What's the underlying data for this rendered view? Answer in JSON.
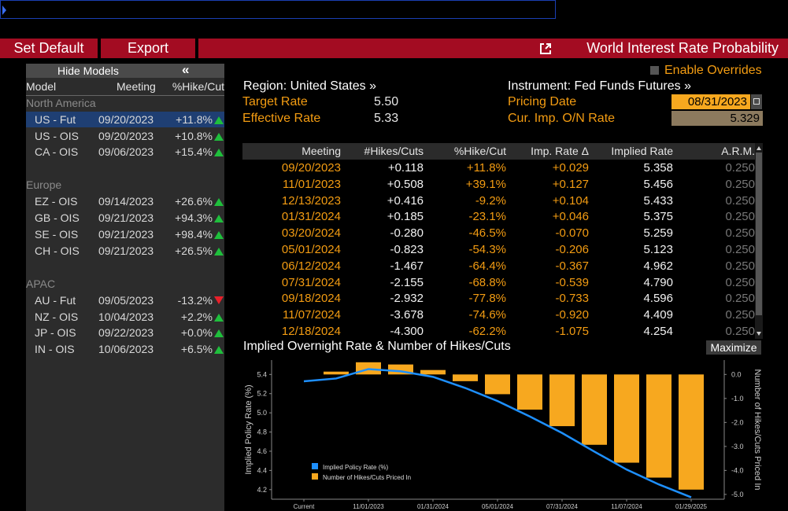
{
  "toolbar": {
    "buttons": [
      "Set Default",
      "Export"
    ],
    "title": "World Interest Rate Probability"
  },
  "left_panel": {
    "hide_label": "Hide Models",
    "collapse_icon": "«",
    "headers": [
      "Model",
      "Meeting",
      "%Hike/Cut"
    ],
    "groups": [
      {
        "name": "North America",
        "rows": [
          {
            "model": "US - Fut",
            "meeting": "09/20/2023",
            "pct": "+11.8%",
            "dir": "up",
            "selected": true
          },
          {
            "model": "US - OIS",
            "meeting": "09/20/2023",
            "pct": "+10.8%",
            "dir": "up"
          },
          {
            "model": "CA - OIS",
            "meeting": "09/06/2023",
            "pct": "+15.4%",
            "dir": "up"
          }
        ]
      },
      {
        "name": "Europe",
        "rows": [
          {
            "model": "EZ - OIS",
            "meeting": "09/14/2023",
            "pct": "+26.6%",
            "dir": "up"
          },
          {
            "model": "GB - OIS",
            "meeting": "09/21/2023",
            "pct": "+94.3%",
            "dir": "up"
          },
          {
            "model": "SE - OIS",
            "meeting": "09/21/2023",
            "pct": "+98.4%",
            "dir": "up"
          },
          {
            "model": "CH - OIS",
            "meeting": "09/21/2023",
            "pct": "+26.5%",
            "dir": "up"
          }
        ]
      },
      {
        "name": "APAC",
        "rows": [
          {
            "model": "AU - Fut",
            "meeting": "09/05/2023",
            "pct": "-13.2%",
            "dir": "down"
          },
          {
            "model": "NZ - OIS",
            "meeting": "10/04/2023",
            "pct": "+2.2%",
            "dir": "up"
          },
          {
            "model": "JP - OIS",
            "meeting": "09/22/2023",
            "pct": "+0.0%",
            "dir": "up"
          },
          {
            "model": "IN - OIS",
            "meeting": "10/06/2023",
            "pct": "+6.5%",
            "dir": "up"
          }
        ]
      }
    ]
  },
  "info": {
    "enable_overrides": "Enable Overrides",
    "region": "Region: United States »",
    "instrument": "Instrument: Fed Funds Futures »",
    "target_rate_label": "Target Rate",
    "target_rate_value": "5.50",
    "effective_rate_label": "Effective Rate",
    "effective_rate_value": "5.33",
    "pricing_date_label": "Pricing Date",
    "pricing_date_value": "08/31/2023",
    "cur_imp_label": "Cur. Imp. O/N Rate",
    "cur_imp_value": "5.329"
  },
  "table": {
    "headers": [
      "Meeting",
      "#Hikes/Cuts",
      "%Hike/Cut",
      "Imp. Rate Δ",
      "Implied Rate",
      "A.R.M."
    ],
    "rows": [
      [
        "09/20/2023",
        "+0.118",
        "+11.8%",
        "+0.029",
        "5.358",
        "0.250"
      ],
      [
        "11/01/2023",
        "+0.508",
        "+39.1%",
        "+0.127",
        "5.456",
        "0.250"
      ],
      [
        "12/13/2023",
        "+0.416",
        "-9.2%",
        "+0.104",
        "5.433",
        "0.250"
      ],
      [
        "01/31/2024",
        "+0.185",
        "-23.1%",
        "+0.046",
        "5.375",
        "0.250"
      ],
      [
        "03/20/2024",
        "-0.280",
        "-46.5%",
        "-0.070",
        "5.259",
        "0.250"
      ],
      [
        "05/01/2024",
        "-0.823",
        "-54.3%",
        "-0.206",
        "5.123",
        "0.250"
      ],
      [
        "06/12/2024",
        "-1.467",
        "-64.4%",
        "-0.367",
        "4.962",
        "0.250"
      ],
      [
        "07/31/2024",
        "-2.155",
        "-68.8%",
        "-0.539",
        "4.790",
        "0.250"
      ],
      [
        "09/18/2024",
        "-2.932",
        "-77.8%",
        "-0.733",
        "4.596",
        "0.250"
      ],
      [
        "11/07/2024",
        "-3.678",
        "-74.6%",
        "-0.920",
        "4.409",
        "0.250"
      ],
      [
        "12/18/2024",
        "-4.300",
        "-62.2%",
        "-1.075",
        "4.254",
        "0.250"
      ]
    ]
  },
  "chart_title": "Implied Overnight Rate & Number of Hikes/Cuts",
  "maximize_label": "Maximize",
  "chart_data": {
    "type": "bar+line",
    "title": "Implied Overnight Rate & Number of Hikes/Cuts",
    "ylabel_left": "Implied Policy Rate (%)",
    "ylabel_right": "Number of Hikes/Cuts Priced In",
    "ylim_left": [
      4.1,
      5.55
    ],
    "left_ticks": [
      "5.4",
      "5.2",
      "5.0",
      "4.8",
      "4.6",
      "4.4",
      "4.2"
    ],
    "ylim_right": [
      -5.2,
      0.6
    ],
    "right_ticks": [
      "0.0",
      "-1.0",
      "-2.0",
      "-3.0",
      "-4.0",
      "-5.0"
    ],
    "x_tick_labels": [
      "Current",
      "11/01/2023",
      "01/31/2024",
      "05/01/2024",
      "07/31/2024",
      "11/07/2024",
      "01/29/2025"
    ],
    "categories": [
      "Current",
      "09/20/2023",
      "11/01/2023",
      "12/13/2023",
      "01/31/2024",
      "03/20/2024",
      "05/01/2024",
      "06/12/2024",
      "07/31/2024",
      "09/18/2024",
      "11/07/2024",
      "12/18/2024",
      "01/29/2025"
    ],
    "series": [
      {
        "name": "Implied Policy Rate (%)",
        "type": "line",
        "color": "#1e90ff",
        "values": [
          5.329,
          5.358,
          5.456,
          5.433,
          5.375,
          5.259,
          5.123,
          4.962,
          4.79,
          4.596,
          4.409,
          4.254,
          4.12
        ]
      },
      {
        "name": "Number of Hikes/Cuts Priced In",
        "type": "bar",
        "color": "#f7a81f",
        "values": [
          0,
          0.118,
          0.508,
          0.416,
          0.185,
          -0.28,
          -0.823,
          -1.467,
          -2.155,
          -2.932,
          -3.678,
          -4.3,
          -4.8
        ]
      }
    ],
    "legend_position": "bottom-left"
  },
  "colors": {
    "toolbar_red": "#a30c22",
    "orange": "#f39c12",
    "selected_row": "#1f3f73",
    "up_green": "#1fbf3c",
    "down_red": "#e8202a"
  }
}
